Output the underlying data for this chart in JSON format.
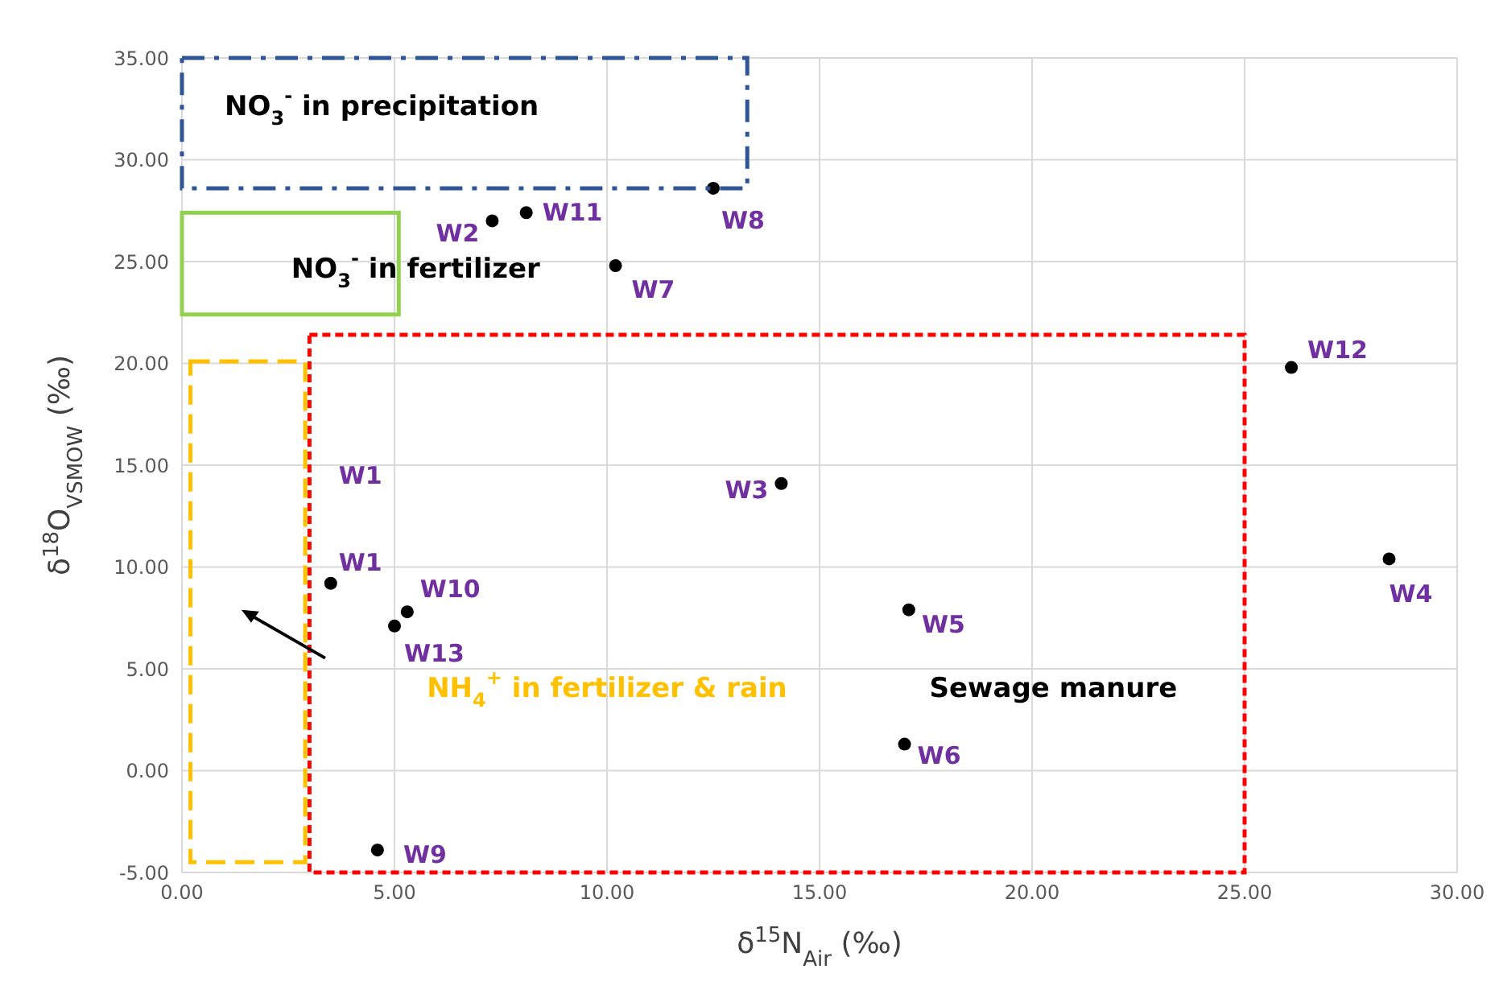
{
  "chart_data": {
    "type": "scatter",
    "xlabel": "δ$^{15}$N$_{Air}$ (‰)",
    "ylabel": "δ$^{18}$O$_{VSMOW}$ (‰)",
    "xlim": [
      0,
      30
    ],
    "ylim": [
      -5,
      35
    ],
    "xticks": [
      {
        "value": 0,
        "label": "0.00"
      },
      {
        "value": 5,
        "label": "5.00"
      },
      {
        "value": 10,
        "label": "10.00"
      },
      {
        "value": 15,
        "label": "15.00"
      },
      {
        "value": 20,
        "label": "20.00"
      },
      {
        "value": 25,
        "label": "25.00"
      },
      {
        "value": 30,
        "label": "30.00"
      }
    ],
    "yticks": [
      {
        "value": -5,
        "label": "-5.00"
      },
      {
        "value": 0,
        "label": "0.00"
      },
      {
        "value": 5,
        "label": "5.00"
      },
      {
        "value": 10,
        "label": "10.00"
      },
      {
        "value": 15,
        "label": "15.00"
      },
      {
        "value": 20,
        "label": "20.00"
      },
      {
        "value": 25,
        "label": "25.00"
      },
      {
        "value": 30,
        "label": "30.00"
      },
      {
        "value": 35,
        "label": "35.00"
      }
    ],
    "grid": true,
    "marker": "circle",
    "series": [
      {
        "type": "scatter",
        "color": "#000000",
        "x": [
          7.3,
          8.1,
          12.5,
          10.2,
          26.1,
          14.1,
          28.4,
          17.1,
          17.0,
          3.5,
          5.3,
          5.0,
          4.6
        ],
        "values": [
          27.0,
          27.4,
          28.6,
          24.8,
          19.8,
          14.1,
          10.4,
          7.9,
          1.3,
          9.2,
          7.8,
          7.1,
          -3.9
        ],
        "value_labels": [
          "W2",
          "W11",
          "W8",
          "W7",
          "W12",
          "W3",
          "W4",
          "W5",
          "W6",
          "W1",
          "W10",
          "W13",
          "W9"
        ]
      }
    ],
    "annotations": [
      "NO$_{3}$$^{-}$ in precipitation",
      "NO$_{3}$$^{-}$ in fertilizer",
      "NH$_{4}$$^{+}$ in fertilizer & rain",
      "Sewage manure",
      "W1"
    ]
  }
}
